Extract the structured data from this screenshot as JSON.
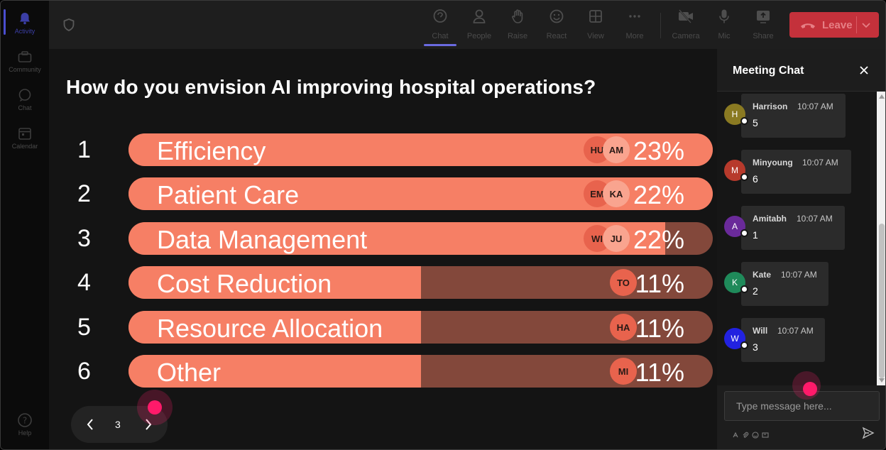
{
  "rail": {
    "items": [
      {
        "label": "Activity",
        "icon": "bell-icon",
        "active": true
      },
      {
        "label": "Community",
        "icon": "community-icon"
      },
      {
        "label": "Chat",
        "icon": "chat-icon"
      },
      {
        "label": "Calendar",
        "icon": "calendar-icon"
      }
    ],
    "help": {
      "label": "Help",
      "icon": "help-icon"
    }
  },
  "toolbar": {
    "buttons": [
      {
        "label": "Chat",
        "icon": "chat-icon",
        "active": true
      },
      {
        "label": "People",
        "icon": "people-icon"
      },
      {
        "label": "Raise",
        "icon": "hand-icon"
      },
      {
        "label": "React",
        "icon": "smiley-icon"
      },
      {
        "label": "View",
        "icon": "grid-icon"
      },
      {
        "label": "More",
        "icon": "more-icon"
      },
      {
        "label": "Camera",
        "icon": "camera-off-icon"
      },
      {
        "label": "Mic",
        "icon": "mic-icon"
      },
      {
        "label": "Share",
        "icon": "share-icon"
      }
    ],
    "leave_label": "Leave"
  },
  "poll": {
    "question": "How do you envision AI improving hospital operations?",
    "accent": "#f67f65",
    "track": "#83483b",
    "options": [
      {
        "rank": "1",
        "label": "Efficiency",
        "pct": "23%",
        "fill": 1.0,
        "avatars": [
          "HU",
          "AM"
        ]
      },
      {
        "rank": "2",
        "label": "Patient Care",
        "pct": "22%",
        "fill": 1.0,
        "avatars": [
          "EM",
          "KA"
        ]
      },
      {
        "rank": "3",
        "label": "Data Management",
        "pct": "22%",
        "fill": 0.918,
        "avatars": [
          "WI",
          "JU"
        ]
      },
      {
        "rank": "4",
        "label": "Cost Reduction",
        "pct": "11%",
        "fill": 0.5,
        "avatars": [
          "TO"
        ]
      },
      {
        "rank": "5",
        "label": "Resource Allocation",
        "pct": "11%",
        "fill": 0.5,
        "avatars": [
          "HA"
        ]
      },
      {
        "rank": "6",
        "label": "Other",
        "pct": "11%",
        "fill": 0.5,
        "avatars": [
          "MI"
        ]
      }
    ],
    "page": "3"
  },
  "chat": {
    "title": "Meeting Chat",
    "messages": [
      {
        "initial": "H",
        "name": "Harrison",
        "time": "10:07 AM",
        "text": "5",
        "color": "#8a7a22"
      },
      {
        "initial": "M",
        "name": "Minyoung",
        "time": "10:07 AM",
        "text": "6",
        "color": "#b73a2c"
      },
      {
        "initial": "A",
        "name": "Amitabh",
        "time": "10:07 AM",
        "text": "1",
        "color": "#6a2a9a"
      },
      {
        "initial": "K",
        "name": "Kate",
        "time": "10:07 AM",
        "text": "2",
        "color": "#1f8a5a"
      },
      {
        "initial": "W",
        "name": "Will",
        "time": "10:07 AM",
        "text": "3",
        "color": "#2222e0"
      }
    ],
    "input_placeholder": "Type message here..."
  }
}
